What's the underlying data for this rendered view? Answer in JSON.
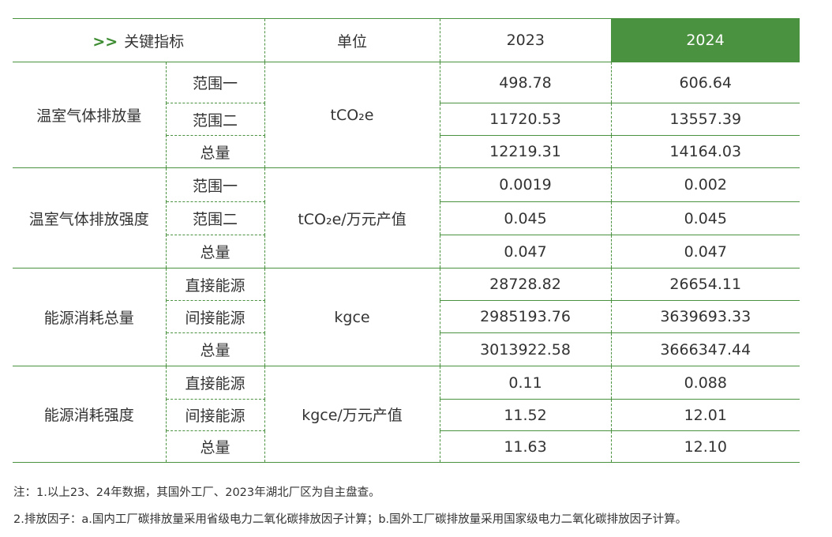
{
  "header": {
    "arrow": ">>",
    "indicator": "关键指标",
    "unit": "单位",
    "year1": "2023",
    "year2": "2024"
  },
  "colors": {
    "accent": "#4a9140"
  },
  "groups": [
    {
      "name": "温室气体排放量",
      "unit": "tCO₂e",
      "rows": [
        {
          "label": "范围一",
          "v2023": "498.78",
          "v2024": "606.64"
        },
        {
          "label": "范围二",
          "v2023": "11720.53",
          "v2024": "13557.39"
        },
        {
          "label": "总量",
          "v2023": "12219.31",
          "v2024": "14164.03"
        }
      ]
    },
    {
      "name": "温室气体排放强度",
      "unit": "tCO₂e/万元产值",
      "rows": [
        {
          "label": "范围一",
          "v2023": "0.0019",
          "v2024": "0.002"
        },
        {
          "label": "范围二",
          "v2023": "0.045",
          "v2024": "0.045"
        },
        {
          "label": "总量",
          "v2023": "0.047",
          "v2024": "0.047"
        }
      ]
    },
    {
      "name": "能源消耗总量",
      "unit": "kgce",
      "rows": [
        {
          "label": "直接能源",
          "v2023": "28728.82",
          "v2024": "26654.11"
        },
        {
          "label": "间接能源",
          "v2023": "2985193.76",
          "v2024": "3639693.33"
        },
        {
          "label": "总量",
          "v2023": "3013922.58",
          "v2024": "3666347.44"
        }
      ]
    },
    {
      "name": "能源消耗强度",
      "unit": "kgce/万元产值",
      "rows": [
        {
          "label": "直接能源",
          "v2023": "0.11",
          "v2024": "0.088"
        },
        {
          "label": "间接能源",
          "v2023": "11.52",
          "v2024": "12.01"
        },
        {
          "label": "总量",
          "v2023": "11.63",
          "v2024": "12.10"
        }
      ]
    }
  ],
  "notes": [
    "注：1.以上23、24年数据，其国外工厂、2023年湖北厂区为自主盘查。",
    "2.排放因子：a.国内工厂碳排放量采用省级电力二氧化碳排放因子计算；b.国外工厂碳排放量采用国家级电力二氧化碳排放因子计算。"
  ]
}
